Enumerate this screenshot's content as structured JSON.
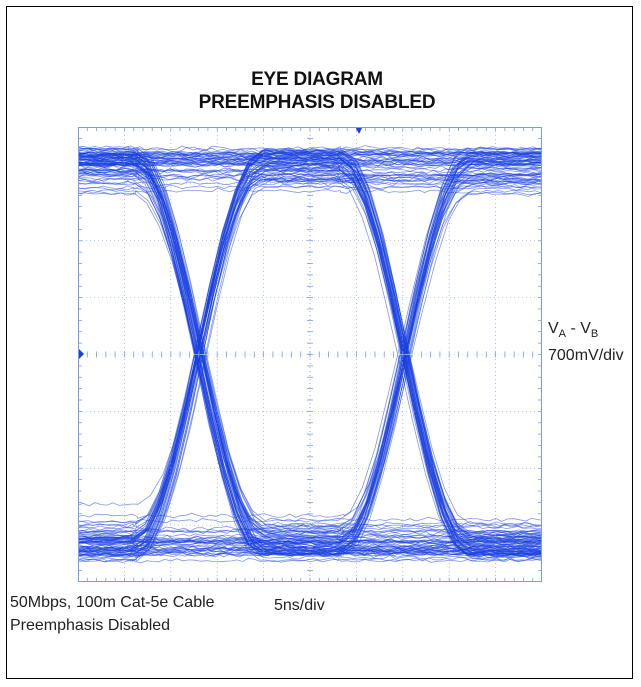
{
  "chart_data": {
    "type": "eye-diagram",
    "title": "EYE DIAGRAM",
    "subtitle": "PREEMPHASIS DISABLED",
    "y_label": {
      "v": "V",
      "sub_a": "A",
      "sep": " - ",
      "sub_b": "B",
      "scale": "700mV/div"
    },
    "x_scale": "5ns/div",
    "footnote_lines": [
      "50Mbps, 100m Cat-5e Cable",
      "Preemphasis Disabled"
    ],
    "grid": {
      "x_divisions": 10,
      "y_divisions": 8
    },
    "trace_color": "#1a3fe0",
    "grid_color": "#7a9be8",
    "crossing_x_divisions": [
      2.6,
      7.05
    ],
    "center_level_divisions": 0,
    "rail_levels_divisions": [
      3.6,
      -3.6
    ]
  }
}
